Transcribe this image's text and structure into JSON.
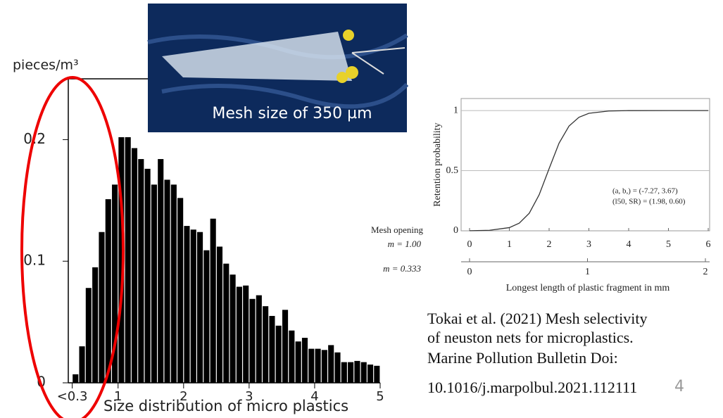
{
  "chart_data": [
    {
      "type": "histogram",
      "y_label": "pieces/m³",
      "bins": [
        0.3,
        0.4,
        0.5,
        0.6,
        0.7,
        0.8,
        0.9,
        1.0,
        1.1,
        1.2,
        1.3,
        1.4,
        1.5,
        1.6,
        1.7,
        1.8,
        1.9,
        2.0,
        2.1,
        2.2,
        2.3,
        2.4,
        2.5,
        2.6,
        2.7,
        2.8,
        2.9,
        3.0,
        3.1,
        3.2,
        3.3,
        3.4,
        3.5,
        3.6,
        3.7,
        3.8,
        3.9,
        4.0,
        4.1,
        4.2,
        4.3,
        4.4,
        4.5,
        4.6,
        4.7,
        4.8,
        4.9,
        5.0
      ],
      "values": [
        0.007,
        0.03,
        0.078,
        0.095,
        0.124,
        0.151,
        0.163,
        0.202,
        0.202,
        0.193,
        0.184,
        0.176,
        0.163,
        0.184,
        0.167,
        0.163,
        0.152,
        0.129,
        0.126,
        0.124,
        0.109,
        0.135,
        0.112,
        0.098,
        0.089,
        0.079,
        0.08,
        0.069,
        0.072,
        0.063,
        0.055,
        0.047,
        0.06,
        0.043,
        0.034,
        0.037,
        0.028,
        0.028,
        0.027,
        0.031,
        0.025,
        0.017,
        0.017,
        0.018,
        0.017,
        0.015,
        0.014
      ],
      "color": "#000000",
      "xlim": [
        0.24,
        5
      ],
      "xticks": [
        {
          "value": 0.3,
          "label": "<0.3"
        },
        1,
        2,
        3,
        4,
        5
      ],
      "ylim": [
        0,
        0.25
      ],
      "yticks": [
        0,
        0.1,
        0.2
      ]
    },
    {
      "type": "line",
      "y_label": "Retention probability",
      "x_label": "Longest length of plastic fragment in mm",
      "x": [
        0,
        0.5,
        1,
        1.25,
        1.5,
        1.75,
        2,
        2.25,
        2.5,
        2.75,
        3,
        3.5,
        4,
        5,
        6
      ],
      "series": [
        {
          "color": "#333333",
          "values": [
            0.0007,
            0.0044,
            0.0266,
            0.064,
            0.146,
            0.3,
            0.517,
            0.729,
            0.871,
            0.944,
            0.977,
            0.996,
            0.9995,
            1.0,
            1.0
          ]
        }
      ],
      "xlim": [
        0,
        6
      ],
      "xticks": [
        0,
        1,
        2,
        3,
        4,
        5,
        6
      ],
      "ylim": [
        0,
        1.1
      ],
      "yticks": [
        0,
        0.5,
        1
      ],
      "grid": true,
      "x2lim": [
        0,
        2
      ],
      "x2ticks": [
        0,
        1,
        2
      ],
      "axis_labels": [
        "Mesh opening",
        "m = 1.00",
        "m = 0.333"
      ],
      "annotations": [
        "(a, b,) = (-7.27, 3.67)",
        "(l50, SR) = (1.98, 0.60)"
      ]
    }
  ],
  "photo_caption": "Mesh size of 350 µm",
  "caption": "Size distribution of micro plastics",
  "citation": [
    "Tokai et al. (2021) Mesh selectivity",
    "of neuston nets for microplastics.",
    "Marine Pollution Bulletin Doi:",
    "10.1016/j.marpolbul.2021.112111"
  ],
  "page_number": "4"
}
